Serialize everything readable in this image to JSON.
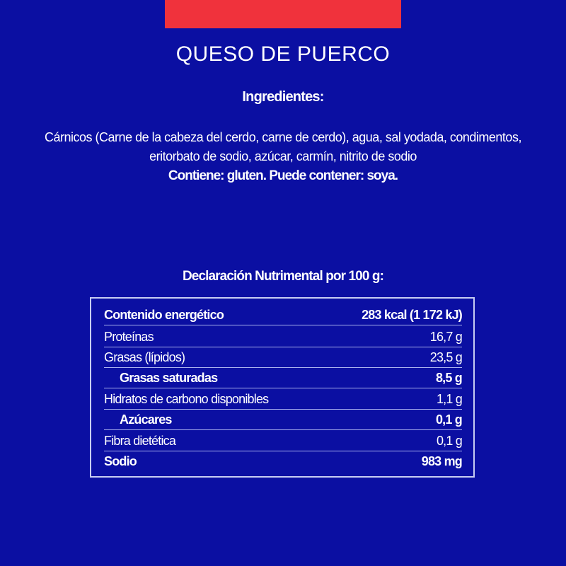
{
  "colors": {
    "background": "#0b0fa2",
    "accent_bar": "#f0323c",
    "text": "#ffffff"
  },
  "title": "QUESO DE PUERCO",
  "ingredients": {
    "heading": "Ingredientes:",
    "line1": "Cárnicos (Carne de la cabeza del cerdo, carne de cerdo), agua, sal yodada, condimentos,",
    "line2": "eritorbato de sodio, azúcar, carmín, nitrito de sodio",
    "allergens": "Contiene: gluten. Puede contener: soya."
  },
  "nutrition": {
    "heading": "Declaración Nutrimental por 100 g:",
    "rows": [
      {
        "label": "Contenido energético",
        "value": "283 kcal (1 172 kJ)",
        "bold": true,
        "indent": false
      },
      {
        "label": "Proteínas",
        "value": "16,7 g",
        "bold": false,
        "indent": false
      },
      {
        "label": "Grasas (lípidos)",
        "value": "23,5 g",
        "bold": false,
        "indent": false
      },
      {
        "label": "Grasas saturadas",
        "value": "8,5 g",
        "bold": true,
        "indent": true
      },
      {
        "label": "Hidratos de carbono disponibles",
        "value": "1,1 g",
        "bold": false,
        "indent": false
      },
      {
        "label": "Azúcares",
        "value": "0,1 g",
        "bold": true,
        "indent": true
      },
      {
        "label": "Fibra dietética",
        "value": "0,1 g",
        "bold": false,
        "indent": false
      },
      {
        "label": "Sodio",
        "value": "983 mg",
        "bold": true,
        "indent": false
      }
    ]
  }
}
